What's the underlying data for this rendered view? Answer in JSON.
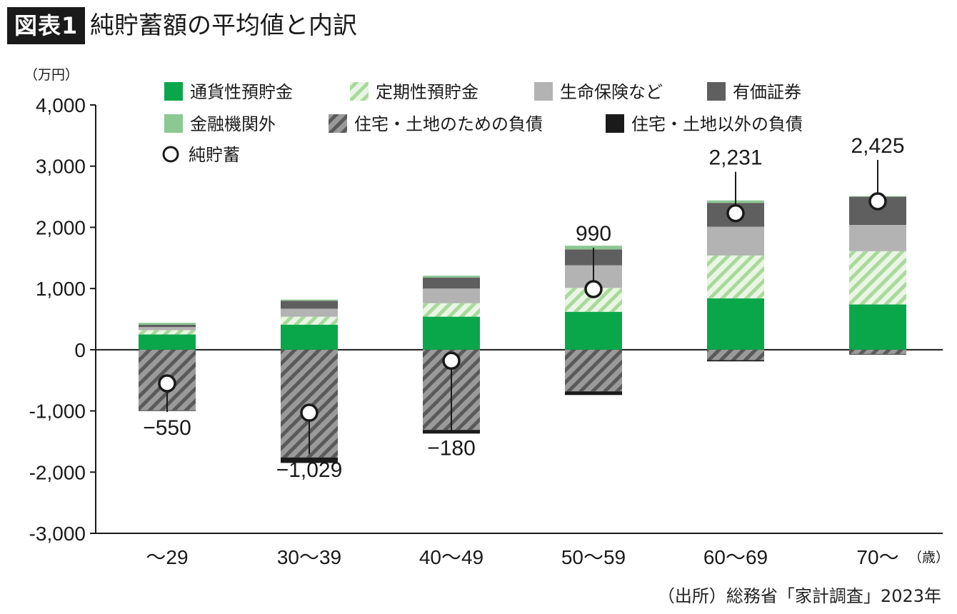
{
  "header": {
    "figure_label": "図表1",
    "title": "純貯蓄額の平均値と内訳"
  },
  "footer": {
    "source": "（出所）総務省「家計調査」2023年"
  },
  "chart_data": {
    "type": "bar",
    "stacked": true,
    "y_unit": "（万円）",
    "x_unit": "（歳）",
    "ylim": [
      -3000,
      4000
    ],
    "yticks": [
      4000,
      3000,
      2000,
      1000,
      0,
      -1000,
      -2000,
      -3000
    ],
    "ytick_labels": [
      "4,000",
      "3,000",
      "2,000",
      "1,000",
      "0",
      "-1,000",
      "-2,000",
      "-3,000"
    ],
    "categories": [
      "〜29",
      "30〜39",
      "40〜49",
      "50〜59",
      "60〜69",
      "70〜"
    ],
    "series": [
      {
        "name": "通貨性預貯金",
        "color": "#0aa74a",
        "pattern": "solid",
        "sign": "positive",
        "values": [
          250,
          410,
          540,
          620,
          840,
          740
        ]
      },
      {
        "name": "定期性預貯金",
        "color": "#b7e0ac",
        "pattern": "hatch-light",
        "sign": "positive",
        "values": [
          70,
          130,
          220,
          390,
          700,
          870
        ]
      },
      {
        "name": "生命保険など",
        "color": "#b3b3b3",
        "pattern": "solid",
        "sign": "positive",
        "values": [
          50,
          130,
          240,
          370,
          470,
          430
        ]
      },
      {
        "name": "有価証券",
        "color": "#5f5f5f",
        "pattern": "solid",
        "sign": "positive",
        "values": [
          40,
          130,
          180,
          260,
          390,
          460
        ]
      },
      {
        "name": "金融機関外",
        "color": "#8cc892",
        "pattern": "solid",
        "sign": "positive",
        "values": [
          30,
          20,
          30,
          60,
          40,
          10
        ]
      },
      {
        "name": "住宅・土地のための負債",
        "color": "#6e6e6e",
        "pattern": "hatch-dark",
        "sign": "negative",
        "values": [
          990,
          1760,
          1310,
          680,
          170,
          70
        ]
      },
      {
        "name": "住宅・土地以外の負債",
        "color": "#1a1a1a",
        "pattern": "solid",
        "sign": "negative",
        "values": [
          10,
          90,
          60,
          60,
          20,
          10
        ]
      }
    ],
    "net_savings": {
      "name": "純貯蓄",
      "values": [
        -550,
        -1029,
        -180,
        990,
        2231,
        2425
      ],
      "labels": [
        "−550",
        "−1,029",
        "−180",
        "990",
        "2,231",
        "2,425"
      ],
      "label_side": [
        "below",
        "below",
        "below",
        "above",
        "above",
        "above"
      ]
    },
    "legend_position": "top"
  }
}
